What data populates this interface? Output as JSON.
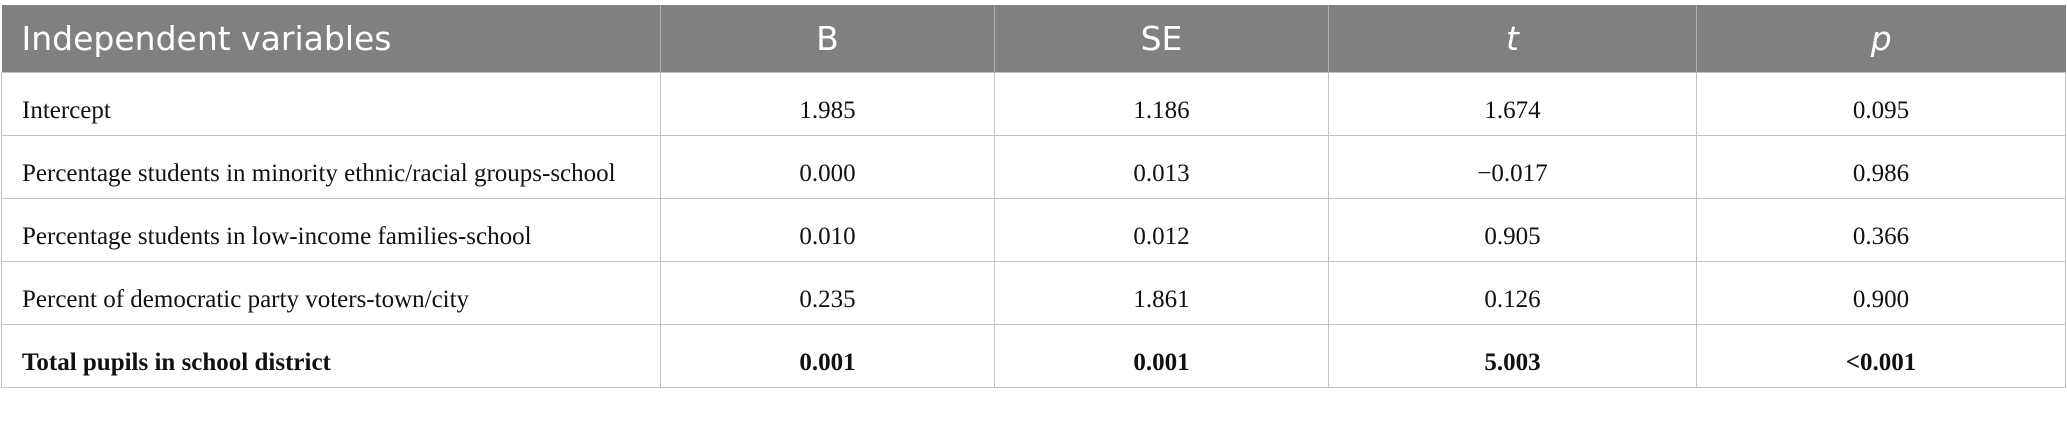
{
  "header": {
    "columns": [
      "Independent variables",
      "B",
      "SE",
      "t",
      "p"
    ]
  },
  "table": {
    "rows": [
      [
        "Intercept",
        "1.985",
        "1.186",
        "1.674",
        "0.095"
      ],
      [
        "Percentage students in minority ethnic/racial groups-school",
        "0.000",
        "0.013",
        "−0.017",
        "0.986"
      ],
      [
        "Percentage students in low-income families-school",
        "0.010",
        "0.012",
        "0.905",
        "0.366"
      ],
      [
        "Percent of democratic party voters-town/city",
        "0.235",
        "1.861",
        "0.126",
        "0.900"
      ],
      [
        "Total pupils in school district",
        "0.001",
        "0.001",
        "5.003",
        "<0.001"
      ]
    ]
  }
}
